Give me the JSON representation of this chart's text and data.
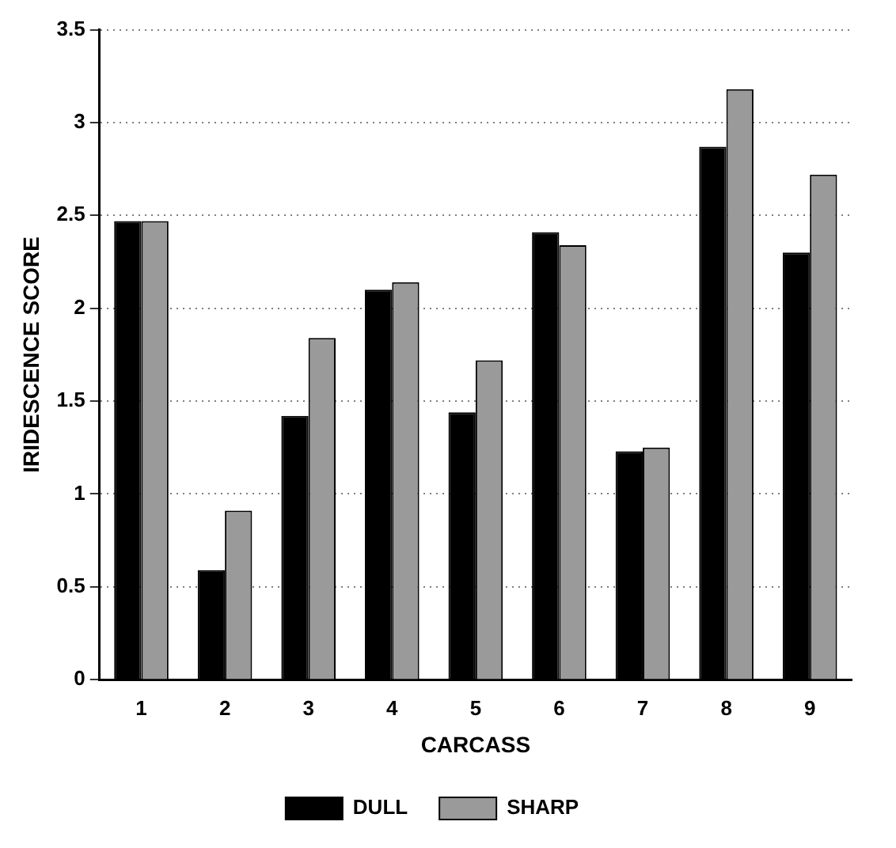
{
  "chart_data": {
    "type": "bar",
    "xlabel": "CARCASS",
    "ylabel": "IRIDESCENCE SCORE",
    "categories": [
      "1",
      "2",
      "3",
      "4",
      "5",
      "6",
      "7",
      "8",
      "9"
    ],
    "series": [
      {
        "name": "DULL",
        "color": "#000000",
        "values": [
          2.47,
          0.59,
          1.42,
          2.1,
          1.44,
          2.41,
          1.23,
          2.87,
          2.3
        ]
      },
      {
        "name": "SHARP",
        "color": "#9a9a9a",
        "values": [
          2.47,
          0.91,
          1.84,
          2.14,
          1.72,
          2.34,
          1.25,
          3.18,
          2.72
        ]
      }
    ],
    "ylim": [
      0,
      3.5
    ],
    "yticks": [
      0,
      0.5,
      1,
      1.5,
      2,
      2.5,
      3,
      3.5
    ],
    "grid": "y",
    "legend": "bottom"
  }
}
